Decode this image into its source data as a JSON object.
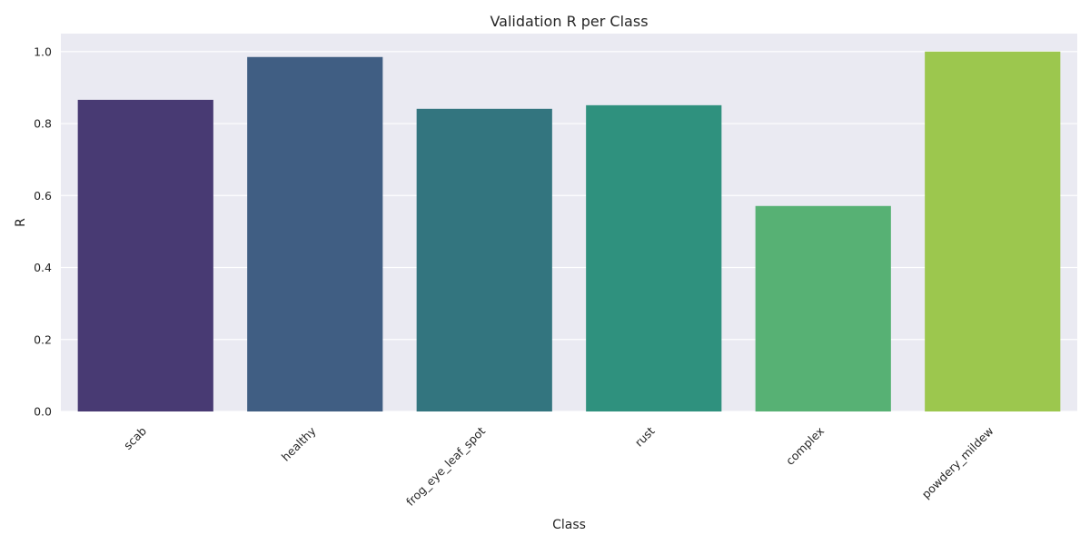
{
  "chart_data": {
    "type": "bar",
    "title": "Validation R per Class",
    "xlabel": "Class",
    "ylabel": "R",
    "categories": [
      "scab",
      "healthy",
      "frog_eye_leaf_spot",
      "rust",
      "complex",
      "powdery_mildew"
    ],
    "values": [
      0.866,
      0.985,
      0.841,
      0.851,
      0.571,
      1.0
    ],
    "ylim": [
      0,
      1.05
    ],
    "yticks": [
      "0.0",
      "0.2",
      "0.4",
      "0.6",
      "0.8",
      "1.0"
    ],
    "grid": true,
    "legend": "none",
    "colors": [
      "#483a73",
      "#405e83",
      "#33757f",
      "#2f917e",
      "#57b174",
      "#9cc74e"
    ],
    "background": "#eaeaf2"
  }
}
